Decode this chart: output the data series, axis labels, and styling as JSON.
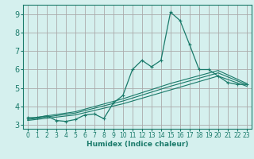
{
  "title": "",
  "xlabel": "Humidex (Indice chaleur)",
  "xlim": [
    -0.5,
    23.5
  ],
  "ylim": [
    2.8,
    9.5
  ],
  "xticks": [
    0,
    1,
    2,
    3,
    4,
    5,
    6,
    7,
    8,
    9,
    10,
    11,
    12,
    13,
    14,
    15,
    16,
    17,
    18,
    19,
    20,
    21,
    22,
    23
  ],
  "yticks": [
    3,
    4,
    5,
    6,
    7,
    8,
    9
  ],
  "bg_color": "#d5f0ee",
  "grid_color": "#aaaaaa",
  "line_color": "#1a7a6a",
  "main_x": [
    0,
    1,
    2,
    3,
    4,
    5,
    6,
    7,
    8,
    9,
    10,
    11,
    12,
    13,
    14,
    15,
    16,
    17,
    18,
    19,
    20,
    21,
    22,
    23
  ],
  "main_y": [
    3.4,
    3.4,
    3.5,
    3.25,
    3.2,
    3.3,
    3.55,
    3.6,
    3.35,
    4.2,
    4.6,
    6.0,
    6.5,
    6.15,
    6.5,
    9.1,
    8.65,
    7.35,
    6.0,
    6.0,
    5.65,
    5.3,
    5.2,
    5.2
  ],
  "upper_x": [
    0,
    5,
    10,
    15,
    20,
    23
  ],
  "upper_y": [
    3.35,
    3.72,
    4.42,
    5.25,
    5.95,
    5.25
  ],
  "mid_x": [
    0,
    5,
    10,
    15,
    20,
    23
  ],
  "mid_y": [
    3.3,
    3.65,
    4.3,
    5.1,
    5.82,
    5.18
  ],
  "lower_x": [
    0,
    5,
    10,
    15,
    20,
    23
  ],
  "lower_y": [
    3.25,
    3.55,
    4.15,
    4.9,
    5.65,
    5.1
  ]
}
